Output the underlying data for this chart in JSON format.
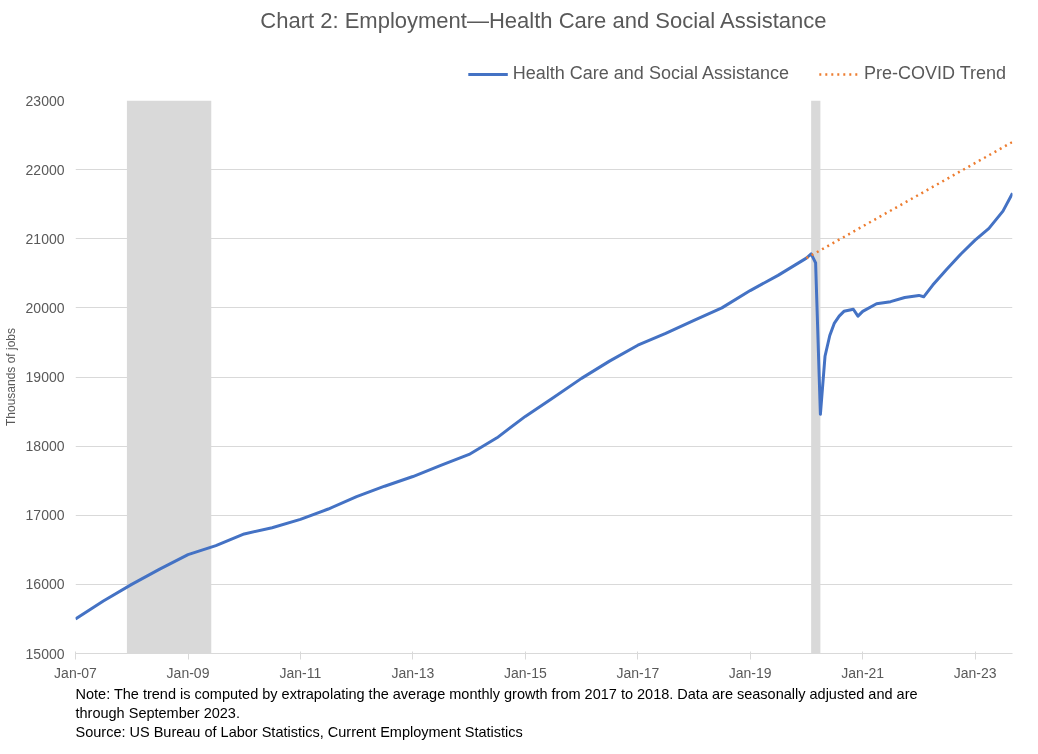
{
  "chart_data": {
    "type": "line",
    "title": "Chart 2: Employment—Health Care and Social Assistance",
    "ylabel": "Thousands of jobs",
    "series": [
      {
        "name": "Health Care and Social Assistance",
        "color": "#4472c4",
        "line_style": "solid",
        "x": [
          "2007-01",
          "2007-07",
          "2008-01",
          "2008-07",
          "2009-01",
          "2009-07",
          "2010-01",
          "2010-07",
          "2011-01",
          "2011-07",
          "2012-01",
          "2012-07",
          "2013-01",
          "2013-07",
          "2014-01",
          "2014-07",
          "2015-01",
          "2015-07",
          "2016-01",
          "2016-07",
          "2017-01",
          "2017-07",
          "2018-01",
          "2018-07",
          "2019-01",
          "2019-07",
          "2020-01",
          "2020-02",
          "2020-03",
          "2020-04",
          "2020-05",
          "2020-06",
          "2020-07",
          "2020-08",
          "2020-09",
          "2020-11",
          "2020-12",
          "2021-01",
          "2021-04",
          "2021-07",
          "2021-10",
          "2022-01",
          "2022-02",
          "2022-04",
          "2022-07",
          "2022-10",
          "2023-01",
          "2023-04",
          "2023-07",
          "2023-09"
        ],
        "values": [
          15500,
          15760,
          16000,
          16220,
          16430,
          16560,
          16730,
          16820,
          16940,
          17090,
          17270,
          17420,
          17560,
          17720,
          17880,
          18120,
          18430,
          18700,
          18980,
          19230,
          19460,
          19630,
          19820,
          20000,
          20250,
          20470,
          20720,
          20780,
          20650,
          18460,
          19300,
          19600,
          19780,
          19880,
          19950,
          19980,
          19880,
          19950,
          20060,
          20090,
          20150,
          20180,
          20160,
          20330,
          20560,
          20780,
          20980,
          21150,
          21400,
          21660
        ]
      },
      {
        "name": "Pre-COVID Trend",
        "color": "#ed7d31",
        "line_style": "dotted",
        "x": [
          "2020-01",
          "2023-09"
        ],
        "values": [
          20720,
          22400
        ]
      }
    ],
    "xlim": [
      "2007-01",
      "2023-09"
    ],
    "xticks": [
      {
        "value": "2007-01",
        "label": "Jan-07"
      },
      {
        "value": "2009-01",
        "label": "Jan-09"
      },
      {
        "value": "2011-01",
        "label": "Jan-11"
      },
      {
        "value": "2013-01",
        "label": "Jan-13"
      },
      {
        "value": "2015-01",
        "label": "Jan-15"
      },
      {
        "value": "2017-01",
        "label": "Jan-17"
      },
      {
        "value": "2019-01",
        "label": "Jan-19"
      },
      {
        "value": "2021-01",
        "label": "Jan-21"
      },
      {
        "value": "2023-01",
        "label": "Jan-23"
      }
    ],
    "ylim": [
      15000,
      23000
    ],
    "yticks": [
      15000,
      16000,
      17000,
      18000,
      19000,
      20000,
      21000,
      22000,
      23000
    ],
    "bands": [
      {
        "axis": "x",
        "from": "2007-12",
        "to": "2009-06",
        "color": "#d9d9d9"
      },
      {
        "axis": "x",
        "from": "2020-02",
        "to": "2020-04",
        "color": "#d9d9d9"
      }
    ],
    "grid": "y",
    "legend": "top right",
    "marker": "none",
    "annotations": [
      "Note: The trend is computed by extrapolating the average monthly growth from 2017 to 2018. Data are seasonally adjusted and are through September 2023.",
      "Source: US Bureau of Labor Statistics, Current Employment Statistics"
    ]
  }
}
